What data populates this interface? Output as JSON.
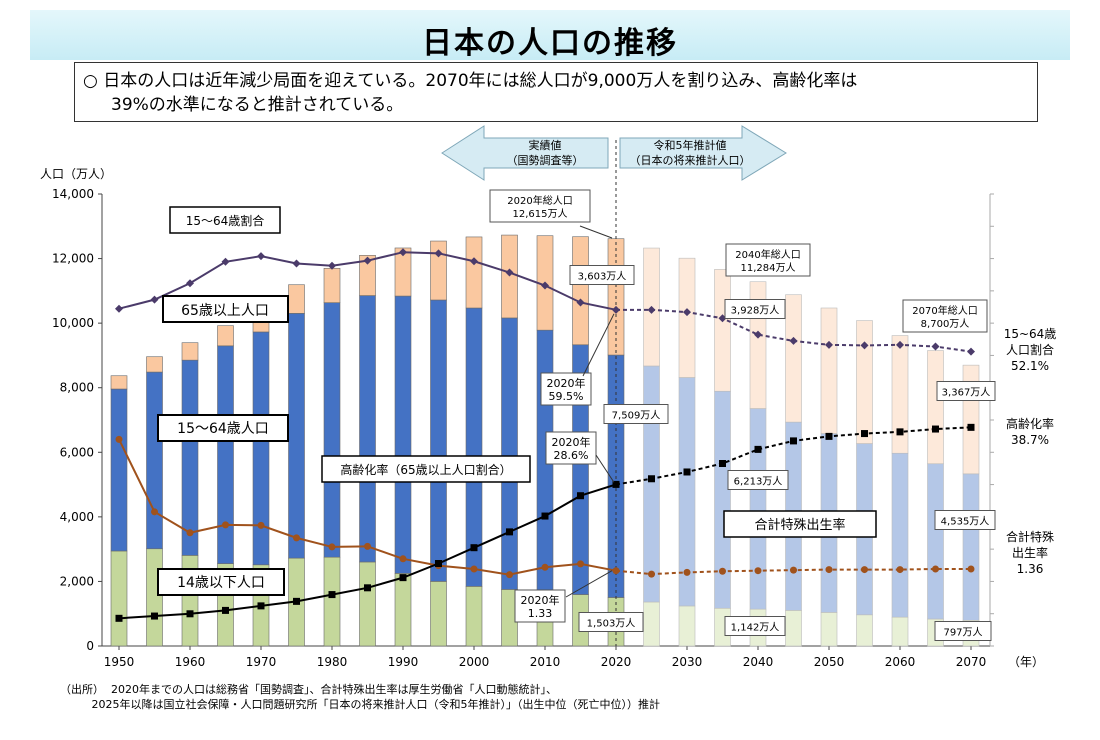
{
  "title": "日本の人口の推移",
  "summary": {
    "line1": "○ 日本の人口は近年減少局面を迎えている。2070年には総人口が9,000万人を割り込み、高齢化率は",
    "line2": "39%の水準になると推計されている。"
  },
  "arrows": {
    "left": [
      "実績値",
      "（国勢調査等）"
    ],
    "right": [
      "令和5年推計値",
      "（日本の将来推計人口）"
    ]
  },
  "source": {
    "label": "（出所）",
    "line1": "2020年までの人口は総務省「国勢調査」、合計特殊出生率は厚生労働省「人口動態統計」、",
    "line2": "2025年以降は国立社会保障・人口問題研究所「日本の将来推計人口（令和5年推計）」（出生中位（死亡中位））推計"
  },
  "colors": {
    "age65_actual": "#fac8a0",
    "age65_proj": "#fde9da",
    "age1564_actual": "#4472c4",
    "age1564_proj": "#b4c7e7",
    "age014_actual": "#c4d79b",
    "age014_proj": "#e8f0d6",
    "ratio_line": "#4b3b6a",
    "aging_line": "#000000",
    "tfr_line": "#a0521c"
  },
  "chart_data": {
    "type": "bar",
    "stacked": true,
    "x_unit": "（年）",
    "ylabel": "人口（万人）",
    "ylim": [
      0,
      14000
    ],
    "yticks": [
      "0",
      "2,000",
      "4,000",
      "6,000",
      "8,000",
      "10,000",
      "12,000",
      "14,000"
    ],
    "x_tick_labels": [
      "1950",
      "1960",
      "1970",
      "1980",
      "1990",
      "2000",
      "2010",
      "2020",
      "2030",
      "2040",
      "2050",
      "2060",
      "2070"
    ],
    "years": [
      1950,
      1955,
      1960,
      1965,
      1970,
      1975,
      1980,
      1985,
      1990,
      1995,
      2000,
      2005,
      2010,
      2015,
      2020,
      2025,
      2030,
      2035,
      2040,
      2045,
      2050,
      2055,
      2060,
      2065,
      2070
    ],
    "projection_start_year": 2025,
    "series": [
      {
        "name": "14歳以下人口",
        "values": [
          2943,
          3012,
          2807,
          2553,
          2515,
          2722,
          2751,
          2603,
          2249,
          2001,
          1847,
          1752,
          1680,
          1595,
          1503,
          1363,
          1240,
          1169,
          1142,
          1103,
          1041,
          966,
          893,
          836,
          797
        ]
      },
      {
        "name": "15～64歳人口",
        "values": [
          5017,
          5473,
          6047,
          6744,
          7212,
          7581,
          7883,
          8251,
          8590,
          8716,
          8622,
          8409,
          8103,
          7735,
          7509,
          7310,
          7076,
          6722,
          6213,
          5832,
          5540,
          5304,
          5078,
          4809,
          4535
        ]
      },
      {
        "name": "65歳以上人口",
        "values": [
          411,
          475,
          540,
          624,
          739,
          887,
          1065,
          1247,
          1489,
          1826,
          2201,
          2567,
          2925,
          3347,
          3603,
          3653,
          3696,
          3773,
          3928,
          3945,
          3888,
          3809,
          3644,
          3506,
          3367
        ]
      }
    ],
    "right_axis_series": [
      {
        "name": "15～64歳割合",
        "values": [
          59.7,
          61.3,
          64.2,
          68.0,
          69.0,
          67.7,
          67.3,
          68.2,
          69.7,
          69.5,
          68.1,
          66.1,
          63.8,
          60.8,
          59.5,
          59.5,
          59.1,
          58.0,
          55.1,
          54.0,
          53.3,
          53.2,
          53.3,
          53.0,
          52.1
        ]
      },
      {
        "name": "高齢化率（65歳以上人口割合）",
        "values": [
          4.9,
          5.3,
          5.7,
          6.3,
          7.1,
          7.9,
          9.1,
          10.3,
          12.1,
          14.6,
          17.4,
          20.2,
          23.0,
          26.6,
          28.6,
          29.6,
          30.8,
          32.3,
          34.8,
          36.3,
          37.1,
          37.6,
          37.9,
          38.4,
          38.7
        ]
      },
      {
        "name": "合計特殊出生率",
        "values": [
          3.65,
          2.37,
          2.0,
          2.14,
          2.13,
          1.91,
          1.75,
          1.76,
          1.54,
          1.42,
          1.36,
          1.26,
          1.39,
          1.45,
          1.33,
          1.27,
          1.3,
          1.32,
          1.33,
          1.34,
          1.35,
          1.35,
          1.35,
          1.36,
          1.36
        ]
      }
    ],
    "series_labels": {
      "s65": "65歳以上人口",
      "s1564": "15～64歳人口",
      "s014": "14歳以下人口",
      "ratio": "15～64歳割合",
      "aging": "高齢化率（65歳以上人口割合）",
      "tfr": "合計特殊出生率"
    },
    "annotations": {
      "total2020": [
        "2020年総人口",
        "12,615万人"
      ],
      "total2040": [
        "2040年総人口",
        "11,284万人"
      ],
      "total2070": [
        "2070年総人口",
        "8,700万人"
      ],
      "v65_2020": "3,603万人",
      "v65_2040": "3,928万人",
      "v65_2070": "3,367万人",
      "v1564_2020": "7,509万人",
      "v1564_2040": "6,213万人",
      "v1564_2070": "4,535万人",
      "v014_2020": "1,503万人",
      "v014_2040": "1,142万人",
      "v014_2070": "797万人",
      "ratio2020": [
        "2020年",
        "59.5%"
      ],
      "aging2020": [
        "2020年",
        "28.6%"
      ],
      "tfr2020": [
        "2020年",
        "1.33"
      ],
      "right_ratio": [
        "15~64歳",
        "人口割合",
        "52.1%"
      ],
      "right_aging": [
        "高齢化率",
        "38.7%"
      ],
      "right_tfr": [
        "合計特殊",
        "出生率",
        "1.36"
      ]
    }
  }
}
